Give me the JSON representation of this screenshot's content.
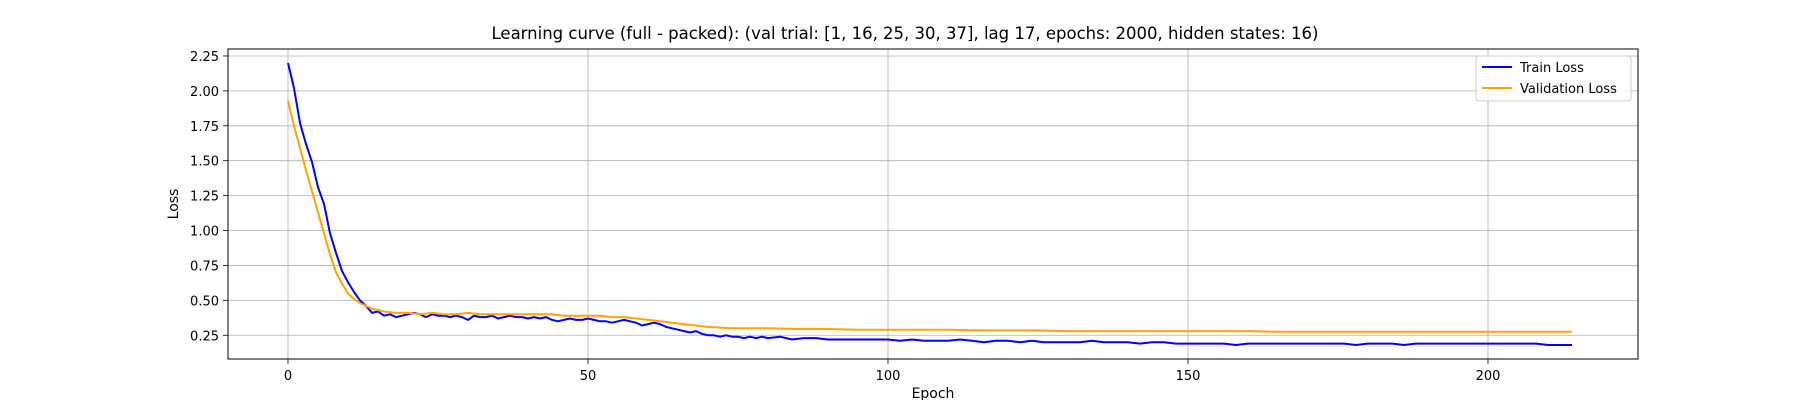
{
  "chart_data": {
    "type": "line",
    "title": "Learning curve (full - packed): (val trial: [1, 16, 25, 30, 37], lag 17, epochs: 2000, hidden states: 16)",
    "xlabel": "Epoch",
    "ylabel": "Loss",
    "xlim": [
      -10,
      225
    ],
    "ylim": [
      0.08,
      2.3
    ],
    "xticks": [
      0,
      50,
      100,
      150,
      200
    ],
    "xtick_labels": [
      "0",
      "50",
      "100",
      "150",
      "200"
    ],
    "yticks": [
      0.25,
      0.5,
      0.75,
      1.0,
      1.25,
      1.5,
      1.75,
      2.0,
      2.25
    ],
    "ytick_labels": [
      "0.25",
      "0.50",
      "0.75",
      "1.00",
      "1.25",
      "1.50",
      "1.75",
      "2.00",
      "2.25"
    ],
    "grid": true,
    "legend_position": "top-right",
    "series": [
      {
        "name": "Train Loss",
        "color": "#0000ff",
        "x": [
          0,
          1,
          2,
          3,
          4,
          5,
          6,
          7,
          8,
          9,
          10,
          11,
          12,
          13,
          14,
          15,
          16,
          17,
          18,
          19,
          20,
          21,
          22,
          23,
          24,
          25,
          26,
          27,
          28,
          29,
          30,
          31,
          32,
          33,
          34,
          35,
          36,
          37,
          38,
          39,
          40,
          41,
          42,
          43,
          44,
          45,
          46,
          47,
          48,
          49,
          50,
          51,
          52,
          53,
          54,
          55,
          56,
          57,
          58,
          59,
          60,
          61,
          62,
          63,
          64,
          65,
          66,
          67,
          68,
          69,
          70,
          71,
          72,
          73,
          74,
          75,
          76,
          77,
          78,
          79,
          80,
          82,
          84,
          86,
          88,
          90,
          92,
          94,
          96,
          98,
          100,
          102,
          104,
          106,
          108,
          110,
          112,
          114,
          116,
          118,
          120,
          122,
          124,
          126,
          128,
          130,
          132,
          134,
          136,
          138,
          140,
          142,
          144,
          146,
          148,
          150,
          152,
          154,
          156,
          158,
          160,
          162,
          164,
          166,
          168,
          170,
          172,
          174,
          176,
          178,
          180,
          182,
          184,
          186,
          188,
          190,
          192,
          194,
          196,
          198,
          200,
          202,
          204,
          206,
          208,
          210,
          212,
          214
        ],
        "y": [
          2.2,
          2.02,
          1.77,
          1.62,
          1.49,
          1.31,
          1.19,
          0.98,
          0.84,
          0.71,
          0.63,
          0.56,
          0.5,
          0.46,
          0.41,
          0.42,
          0.39,
          0.4,
          0.38,
          0.39,
          0.4,
          0.41,
          0.4,
          0.38,
          0.4,
          0.39,
          0.39,
          0.38,
          0.39,
          0.38,
          0.36,
          0.39,
          0.38,
          0.38,
          0.39,
          0.37,
          0.38,
          0.39,
          0.38,
          0.38,
          0.37,
          0.38,
          0.37,
          0.38,
          0.36,
          0.35,
          0.36,
          0.37,
          0.36,
          0.36,
          0.37,
          0.36,
          0.35,
          0.35,
          0.34,
          0.35,
          0.36,
          0.35,
          0.34,
          0.32,
          0.33,
          0.34,
          0.33,
          0.31,
          0.3,
          0.29,
          0.28,
          0.27,
          0.28,
          0.26,
          0.25,
          0.25,
          0.24,
          0.25,
          0.24,
          0.24,
          0.23,
          0.24,
          0.23,
          0.24,
          0.23,
          0.24,
          0.22,
          0.23,
          0.23,
          0.22,
          0.22,
          0.22,
          0.22,
          0.22,
          0.22,
          0.21,
          0.22,
          0.21,
          0.21,
          0.21,
          0.22,
          0.21,
          0.2,
          0.21,
          0.21,
          0.2,
          0.21,
          0.2,
          0.2,
          0.2,
          0.2,
          0.21,
          0.2,
          0.2,
          0.2,
          0.19,
          0.2,
          0.2,
          0.19,
          0.19,
          0.19,
          0.19,
          0.19,
          0.18,
          0.19,
          0.19,
          0.19,
          0.19,
          0.19,
          0.19,
          0.19,
          0.19,
          0.19,
          0.18,
          0.19,
          0.19,
          0.19,
          0.18,
          0.19,
          0.19,
          0.19,
          0.19,
          0.19,
          0.19,
          0.19,
          0.19,
          0.19,
          0.19,
          0.19,
          0.18,
          0.18,
          0.18
        ]
      },
      {
        "name": "Validation Loss",
        "color": "#ffa500",
        "x": [
          0,
          1,
          2,
          3,
          4,
          5,
          6,
          7,
          8,
          9,
          10,
          11,
          12,
          13,
          14,
          15,
          16,
          18,
          20,
          22,
          24,
          26,
          28,
          30,
          32,
          34,
          36,
          38,
          40,
          42,
          44,
          46,
          48,
          50,
          52,
          54,
          56,
          58,
          60,
          62,
          64,
          66,
          68,
          70,
          72,
          74,
          76,
          78,
          80,
          85,
          90,
          95,
          100,
          105,
          110,
          115,
          120,
          125,
          130,
          135,
          140,
          145,
          150,
          155,
          160,
          165,
          170,
          175,
          180,
          185,
          190,
          195,
          200,
          205,
          210,
          214
        ],
        "y": [
          1.93,
          1.75,
          1.59,
          1.43,
          1.28,
          1.13,
          0.98,
          0.83,
          0.7,
          0.62,
          0.55,
          0.51,
          0.48,
          0.46,
          0.44,
          0.43,
          0.42,
          0.41,
          0.41,
          0.4,
          0.41,
          0.4,
          0.4,
          0.41,
          0.4,
          0.4,
          0.4,
          0.4,
          0.4,
          0.4,
          0.4,
          0.39,
          0.39,
          0.39,
          0.39,
          0.38,
          0.38,
          0.37,
          0.36,
          0.35,
          0.34,
          0.33,
          0.32,
          0.31,
          0.305,
          0.3,
          0.3,
          0.3,
          0.3,
          0.295,
          0.295,
          0.29,
          0.29,
          0.29,
          0.29,
          0.285,
          0.285,
          0.285,
          0.28,
          0.28,
          0.28,
          0.28,
          0.28,
          0.28,
          0.28,
          0.275,
          0.275,
          0.275,
          0.275,
          0.275,
          0.275,
          0.275,
          0.275,
          0.275,
          0.275,
          0.275
        ]
      }
    ]
  }
}
